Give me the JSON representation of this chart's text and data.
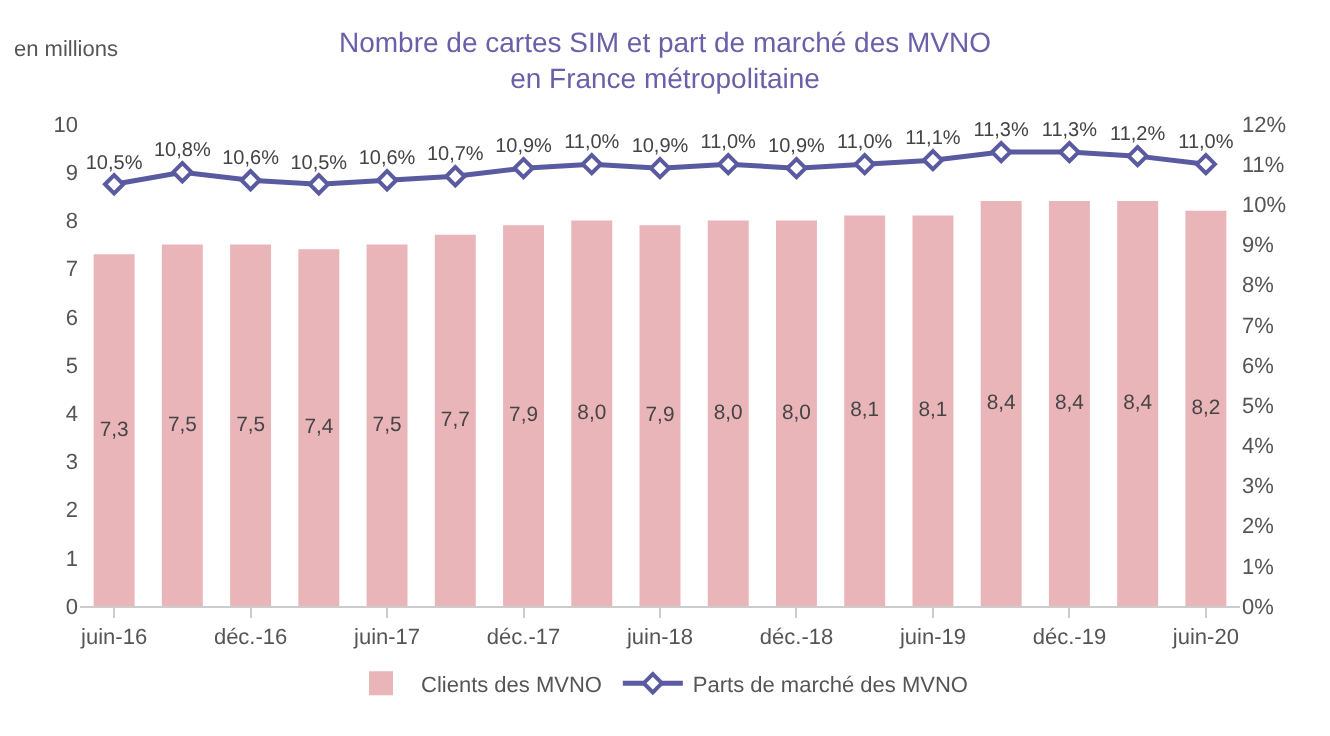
{
  "chart_data": {
    "type": "bar",
    "title": "Nombre de cartes SIM et part de marché des MVNO\nen France métropolitaine",
    "ylabel": "en millions",
    "categories": [
      "juin-16",
      null,
      "déc.-16",
      null,
      "juin-17",
      null,
      "déc.-17",
      null,
      "juin-18",
      null,
      "déc.-18",
      null,
      "juin-19",
      null,
      "déc.-19",
      null,
      "juin-20"
    ],
    "series": [
      {
        "name": "Clients des MVNO",
        "color": "#eab5b9",
        "values": [
          7.3,
          7.5,
          7.5,
          7.4,
          7.5,
          7.7,
          7.9,
          8.0,
          7.9,
          8.0,
          8.0,
          8.1,
          8.1,
          8.4,
          8.4,
          8.4,
          8.2
        ],
        "value_labels": [
          "7,3",
          "7,5",
          "7,5",
          "7,4",
          "7,5",
          "7,7",
          "7,9",
          "8,0",
          "7,9",
          "8,0",
          "8,0",
          "8,1",
          "8,1",
          "8,4",
          "8,4",
          "8,4",
          "8,2"
        ]
      },
      {
        "name": "Parts de marché des MVNO",
        "type": "line",
        "axis": "y2",
        "color": "#5a5aa0",
        "marker": "diamond",
        "values": [
          10.5,
          10.8,
          10.6,
          10.5,
          10.6,
          10.7,
          10.9,
          11.0,
          10.9,
          11.0,
          10.9,
          11.0,
          11.1,
          11.3,
          11.3,
          11.2,
          11.0
        ],
        "value_labels": [
          "10,5%",
          "10,8%",
          "10,6%",
          "10,5%",
          "10,6%",
          "10,7%",
          "10,9%",
          "11,0%",
          "10,9%",
          "11,0%",
          "10,9%",
          "11,0%",
          "11,1%",
          "11,3%",
          "11,3%",
          "11,2%",
          "11,0%"
        ]
      }
    ],
    "ylim": [
      0,
      10
    ],
    "yticks": [
      0,
      1,
      2,
      3,
      4,
      5,
      6,
      7,
      8,
      9,
      10
    ],
    "y2lim": [
      0,
      12
    ],
    "y2ticks": [
      {
        "value": 0,
        "label": "0%"
      },
      {
        "value": 1,
        "label": "1%"
      },
      {
        "value": 2,
        "label": "2%"
      },
      {
        "value": 3,
        "label": "3%"
      },
      {
        "value": 4,
        "label": "4%"
      },
      {
        "value": 5,
        "label": "5%"
      },
      {
        "value": 6,
        "label": "6%"
      },
      {
        "value": 7,
        "label": "7%"
      },
      {
        "value": 8,
        "label": "8%"
      },
      {
        "value": 9,
        "label": "9%"
      },
      {
        "value": 10,
        "label": "10%"
      },
      {
        "value": 11,
        "label": "11%"
      },
      {
        "value": 12,
        "label": "12%"
      }
    ],
    "grid": false,
    "legend": "bottom"
  }
}
